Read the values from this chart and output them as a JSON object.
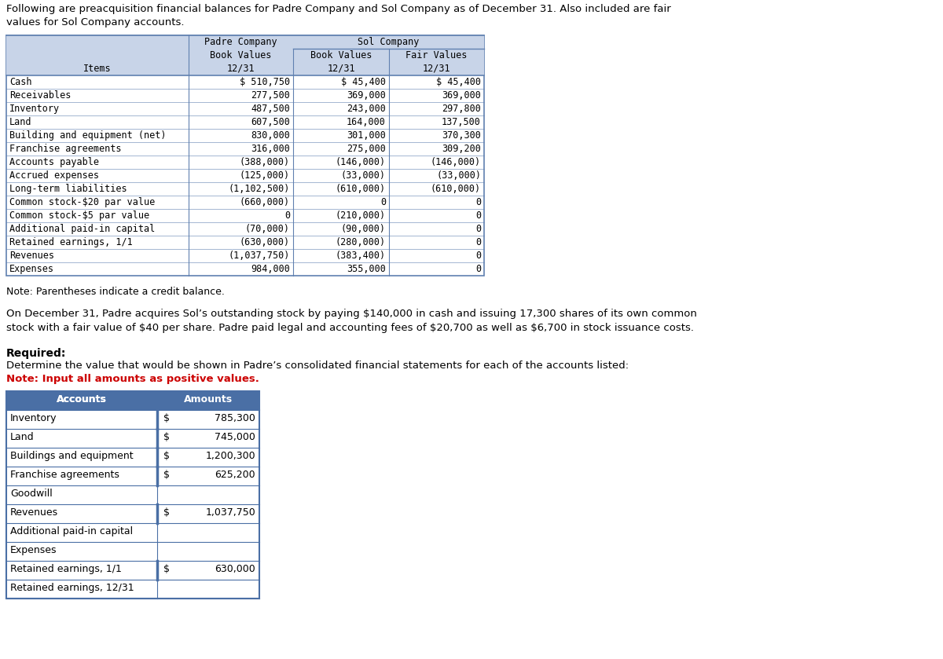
{
  "intro_line1": "Following are preacquisition financial balances for Padre Company and Sol Company as of December 31. Also included are fair",
  "intro_line2": "values for Sol Company accounts.",
  "table1": {
    "rows": [
      [
        "Cash",
        "$ 510,750",
        "$ 45,400",
        "$ 45,400"
      ],
      [
        "Receivables",
        "277,500",
        "369,000",
        "369,000"
      ],
      [
        "Inventory",
        "487,500",
        "243,000",
        "297,800"
      ],
      [
        "Land",
        "607,500",
        "164,000",
        "137,500"
      ],
      [
        "Building and equipment (net)",
        "830,000",
        "301,000",
        "370,300"
      ],
      [
        "Franchise agreements",
        "316,000",
        "275,000",
        "309,200"
      ],
      [
        "Accounts payable",
        "(388,000)",
        "(146,000)",
        "(146,000)"
      ],
      [
        "Accrued expenses",
        "(125,000)",
        "(33,000)",
        "(33,000)"
      ],
      [
        "Long-term liabilities",
        "(1,102,500)",
        "(610,000)",
        "(610,000)"
      ],
      [
        "Common stock-$20 par value",
        "(660,000)",
        "0",
        "0"
      ],
      [
        "Common stock-$5 par value",
        "0",
        "(210,000)",
        "0"
      ],
      [
        "Additional paid-in capital",
        "(70,000)",
        "(90,000)",
        "0"
      ],
      [
        "Retained earnings, 1/1",
        "(630,000)",
        "(280,000)",
        "0"
      ],
      [
        "Revenues",
        "(1,037,750)",
        "(383,400)",
        "0"
      ],
      [
        "Expenses",
        "984,000",
        "355,000",
        "0"
      ]
    ],
    "header_bg": "#c8d4e8",
    "border_color": "#6080b0",
    "sol_line_color": "#4060a0"
  },
  "note_text": "Note: Parentheses indicate a credit balance.",
  "para_text_line1": "On December 31, Padre acquires Sol’s outstanding stock by paying $140,000 in cash and issuing 17,300 shares of its own common",
  "para_text_line2": "stock with a fair value of $40 per share. Padre paid legal and accounting fees of $20,700 as well as $6,700 in stock issuance costs.",
  "required_label": "Required:",
  "required_text": "Determine the value that would be shown in Padre’s consolidated financial statements for each of the accounts listed:",
  "note2_text": "Note: Input all amounts as positive values.",
  "table2": {
    "rows": [
      [
        "Inventory",
        "$",
        "785,300"
      ],
      [
        "Land",
        "$",
        "745,000"
      ],
      [
        "Buildings and equipment",
        "$",
        "1,200,300"
      ],
      [
        "Franchise agreements",
        "$",
        "625,200"
      ],
      [
        "Goodwill",
        "",
        ""
      ],
      [
        "Revenues",
        "$",
        "1,037,750"
      ],
      [
        "Additional paid-in capital",
        "",
        ""
      ],
      [
        "Expenses",
        "",
        ""
      ],
      [
        "Retained earnings, 1/1",
        "$",
        "630,000"
      ],
      [
        "Retained earnings, 12/31",
        "",
        ""
      ]
    ],
    "header_bg": "#4a6fa5",
    "header_text_color": "#ffffff",
    "border_color": "#4a6fa5",
    "row_border_color": "#4a6fa5"
  },
  "bg_color": "#ffffff",
  "note2_color": "#cc0000"
}
